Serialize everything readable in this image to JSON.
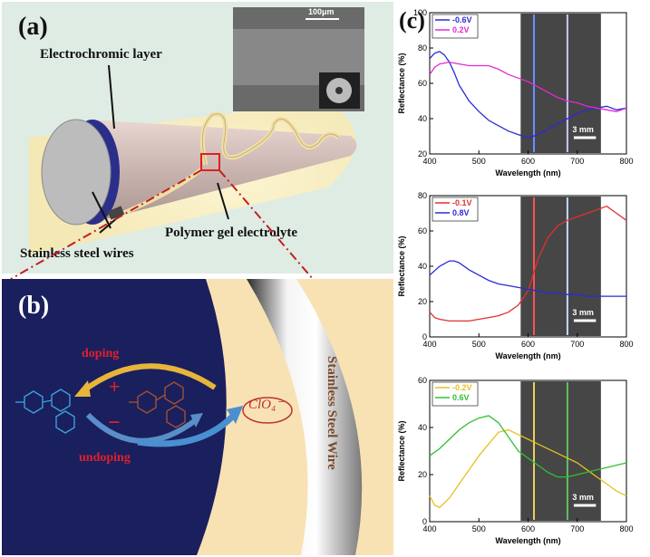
{
  "panel_a": {
    "label": "(a)",
    "electrochromic": "Electrochromic layer",
    "electrolyte": "Polymer gel electrolyte",
    "wires": "Stainless steel wires",
    "sem_scale": "100μm"
  },
  "panel_b": {
    "label": "(b)",
    "doping": "doping",
    "undoping": "undoping",
    "plus": "+",
    "minus": "−",
    "ion": "ClO₄⁻",
    "wire": "Stainless Steel Wire"
  },
  "panel_c": {
    "label": "(c)"
  },
  "colors": {
    "panel_bg": "#dfece4",
    "navy": "#1a1f5e",
    "cream": "#f8e2b4",
    "red_label": "#e0202a"
  },
  "chart_data": [
    {
      "type": "line",
      "xlabel": "Wavelength (nm)",
      "ylabel": "Reflectance (%)",
      "xlim": [
        400,
        800
      ],
      "ylim": [
        20,
        100
      ],
      "xticks": [
        "400",
        "500",
        "600",
        "700",
        "800"
      ],
      "yticks": [
        "20",
        "40",
        "60",
        "80",
        "100"
      ],
      "inset_scale": "3 mm",
      "series": [
        {
          "name": "-0.6V",
          "color": "#2b2bd6",
          "x": [
            400,
            410,
            420,
            430,
            440,
            450,
            460,
            480,
            500,
            520,
            540,
            560,
            580,
            600,
            620,
            640,
            660,
            680,
            700,
            720,
            740,
            760,
            780,
            800
          ],
          "y": [
            74,
            77,
            78,
            76,
            72,
            66,
            59,
            50,
            44,
            39,
            36,
            33,
            31,
            29,
            31,
            34,
            37,
            40,
            43,
            45,
            46,
            47,
            45,
            46
          ]
        },
        {
          "name": "0.2V",
          "color": "#e22ad0",
          "x": [
            400,
            410,
            420,
            440,
            460,
            480,
            500,
            520,
            540,
            560,
            580,
            600,
            620,
            640,
            660,
            680,
            700,
            720,
            740,
            760,
            780,
            800
          ],
          "y": [
            65,
            69,
            71,
            72,
            71,
            70,
            70,
            70,
            68,
            65,
            63,
            61,
            58,
            55,
            52,
            50,
            49,
            47,
            46,
            45,
            44,
            46
          ]
        }
      ]
    },
    {
      "type": "line",
      "xlabel": "Wavelength (nm)",
      "ylabel": "Reflectance (%)",
      "xlim": [
        400,
        800
      ],
      "ylim": [
        0,
        80
      ],
      "xticks": [
        "400",
        "500",
        "600",
        "700",
        "800"
      ],
      "yticks": [
        "0",
        "20",
        "40",
        "60",
        "80"
      ],
      "inset_scale": "3 mm",
      "series": [
        {
          "name": "-0.1V",
          "color": "#e03030",
          "x": [
            400,
            410,
            420,
            440,
            460,
            480,
            500,
            520,
            540,
            560,
            580,
            600,
            610,
            620,
            640,
            660,
            680,
            700,
            720,
            740,
            760,
            780,
            800
          ],
          "y": [
            14,
            11,
            10,
            9,
            9,
            9,
            10,
            11,
            12,
            14,
            18,
            26,
            35,
            44,
            56,
            63,
            66,
            68,
            70,
            72,
            74,
            70,
            66
          ]
        },
        {
          "name": "0.8V",
          "color": "#2b2bd6",
          "x": [
            400,
            420,
            440,
            450,
            460,
            480,
            500,
            520,
            540,
            560,
            580,
            600,
            620,
            640,
            660,
            680,
            700,
            720,
            740,
            760,
            780,
            800
          ],
          "y": [
            35,
            40,
            43,
            43,
            42,
            38,
            35,
            32,
            30,
            29,
            28,
            27,
            26,
            25,
            25,
            24,
            24,
            23,
            23,
            23,
            23,
            23
          ]
        }
      ]
    },
    {
      "type": "line",
      "xlabel": "Wavelength (nm)",
      "ylabel": "Reflectance (%)",
      "xlim": [
        400,
        800
      ],
      "ylim": [
        0,
        60
      ],
      "xticks": [
        "400",
        "500",
        "600",
        "700",
        "800"
      ],
      "yticks": [
        "0",
        "20",
        "40",
        "60"
      ],
      "inset_scale": "3 mm",
      "series": [
        {
          "name": "-0.2V",
          "color": "#e8c020",
          "x": [
            400,
            410,
            420,
            440,
            460,
            480,
            500,
            520,
            540,
            560,
            580,
            600,
            620,
            640,
            660,
            680,
            700,
            720,
            740,
            760,
            780,
            800
          ],
          "y": [
            11,
            7,
            6,
            10,
            16,
            22,
            28,
            33,
            38,
            39,
            37,
            35,
            33,
            31,
            29,
            27,
            25,
            22,
            19,
            16,
            13,
            11
          ]
        },
        {
          "name": "0.6V",
          "color": "#30c030",
          "x": [
            400,
            420,
            440,
            460,
            480,
            500,
            520,
            540,
            560,
            580,
            600,
            620,
            640,
            660,
            680,
            700,
            720,
            740,
            760,
            780,
            800
          ],
          "y": [
            28,
            31,
            35,
            39,
            42,
            44,
            45,
            42,
            36,
            30,
            27,
            24,
            21,
            19,
            19,
            20,
            21,
            22,
            23,
            24,
            25
          ]
        }
      ]
    }
  ]
}
